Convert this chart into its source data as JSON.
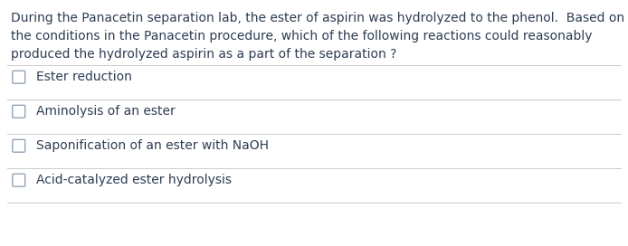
{
  "background_color": "#ffffff",
  "text_color": "#2e3d52",
  "line_color": "#cccccc",
  "question_text": "During the Panacetin separation lab, the ester of aspirin was hydrolyzed to the phenol.  Based on\nthe conditions in the Panacetin procedure, which of the following reactions could reasonably\nproduced the hydrolyzed aspirin as a part of the separation ?",
  "options": [
    "Ester reduction",
    "Aminolysis of an ester",
    "Saponification of an ester with NaOH",
    "Acid-catalyzed ester hydrolysis"
  ],
  "question_fontsize": 10.0,
  "option_fontsize": 10.0,
  "figsize": [
    6.94,
    2.72
  ],
  "dpi": 100
}
